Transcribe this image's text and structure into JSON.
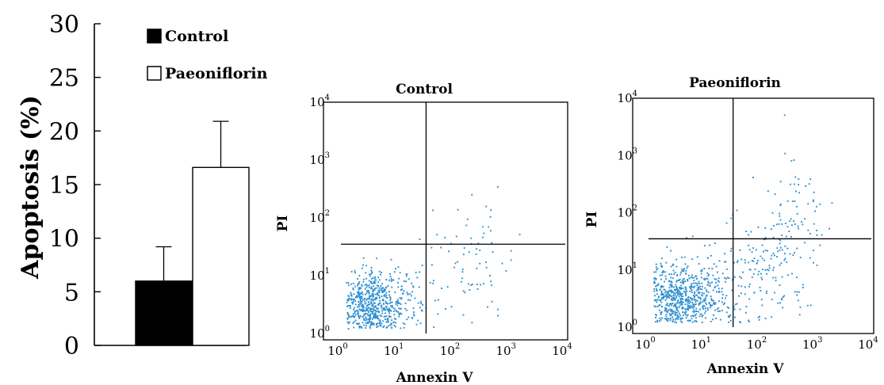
{
  "figure": {
    "accent_color": "#2f8fd0",
    "bar_fill_control": "#000000",
    "bar_fill_paeoniflorin": "#ffffff"
  },
  "chart_data": [
    {
      "type": "bar",
      "categories": [
        "Control",
        "Paeoniflorin"
      ],
      "values": [
        6.0,
        16.6
      ],
      "errors": [
        3.2,
        4.3
      ],
      "ylabel": "Apoptosis (%)",
      "ylim": [
        0,
        30
      ],
      "yticks": [
        0,
        5,
        10,
        15,
        20,
        25,
        30
      ],
      "legend": [
        {
          "label": "Control",
          "fill": "#000000"
        },
        {
          "label": "Paeoniflorin",
          "fill": "#ffffff"
        }
      ],
      "legend_position": "top-center",
      "grid": false
    },
    {
      "type": "scatter",
      "title": "Control",
      "xlabel": "Annexin V",
      "ylabel": "PI",
      "xscale": "log",
      "yscale": "log",
      "xlim": [
        1,
        10000
      ],
      "ylim": [
        1,
        10000
      ],
      "x_tick_labels": [
        "10",
        "10",
        "10",
        "10",
        "10"
      ],
      "x_tick_exponents": [
        "0",
        "1",
        "2",
        "3",
        "4"
      ],
      "y_tick_labels": [
        "10",
        "10",
        "10",
        "10",
        "10"
      ],
      "y_tick_exponents": [
        "0",
        "1",
        "2",
        "3",
        "4"
      ],
      "gate_x": 33,
      "gate_y": 35,
      "point_color": "#2f8fd0",
      "clusters": [
        {
          "center": [
            3.5,
            2.8
          ],
          "spread": [
            0.37,
            0.3
          ],
          "count": 800
        },
        {
          "center": [
            40,
            4
          ],
          "spread": [
            0.45,
            0.55
          ],
          "count": 30
        },
        {
          "center": [
            150,
            10
          ],
          "spread": [
            0.45,
            0.5
          ],
          "count": 45
        },
        {
          "center": [
            350,
            80
          ],
          "spread": [
            0.35,
            0.45
          ],
          "count": 22
        }
      ]
    },
    {
      "type": "scatter",
      "title": "Paeoniflorin",
      "xlabel": "Annexin V",
      "ylabel": "PI",
      "xscale": "log",
      "yscale": "log",
      "xlim": [
        1,
        10000
      ],
      "ylim": [
        1,
        10000
      ],
      "x_tick_labels": [
        "10",
        "10",
        "10",
        "10",
        "10"
      ],
      "x_tick_exponents": [
        "0",
        "1",
        "2",
        "3",
        "4"
      ],
      "y_tick_labels": [
        "10",
        "10",
        "10",
        "10",
        "10"
      ],
      "y_tick_exponents": [
        "0",
        "1",
        "2",
        "3",
        "4"
      ],
      "gate_x": 33,
      "gate_y": 35,
      "point_color": "#2f8fd0",
      "clusters": [
        {
          "center": [
            3.8,
            3.0
          ],
          "spread": [
            0.38,
            0.32
          ],
          "count": 780
        },
        {
          "center": [
            60,
            6
          ],
          "spread": [
            0.5,
            0.55
          ],
          "count": 150
        },
        {
          "center": [
            200,
            15
          ],
          "spread": [
            0.4,
            0.45
          ],
          "count": 70
        },
        {
          "center": [
            500,
            120
          ],
          "spread": [
            0.4,
            0.45
          ],
          "count": 60
        }
      ]
    }
  ]
}
